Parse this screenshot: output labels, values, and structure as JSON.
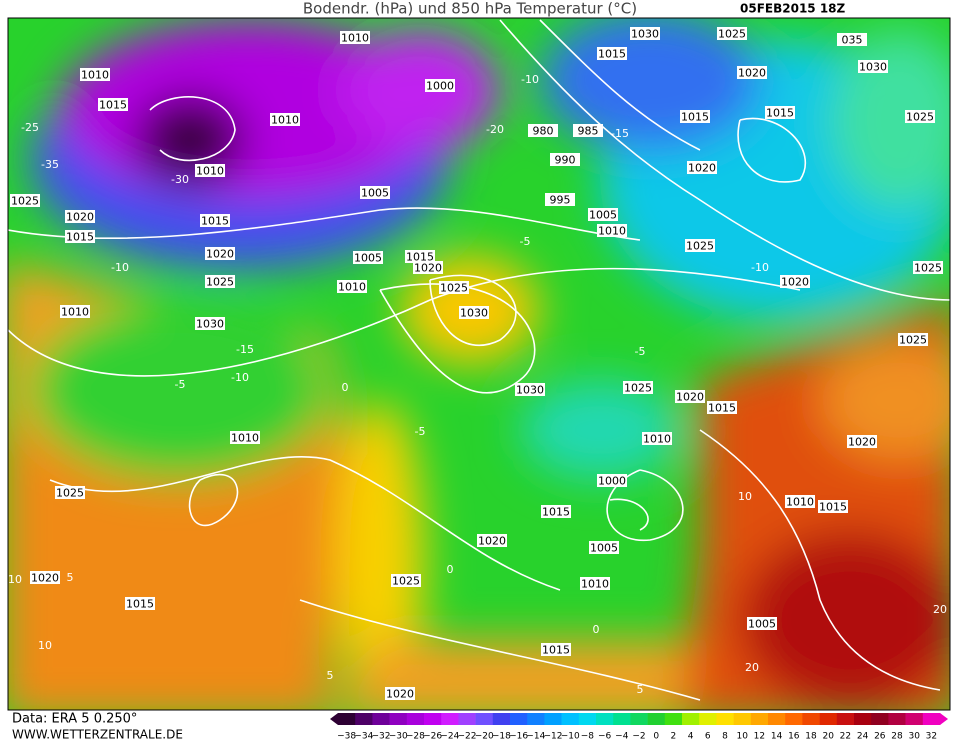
{
  "header": {
    "title": "Bodendr. (hPa) und 850 hPa Temperatur (°C)",
    "date": "05FEB2015 18Z"
  },
  "footer": {
    "source": "Data: ERA 5 0.250°",
    "website": "WWW.WETTERZENTRALE.DE"
  },
  "colorbar": {
    "labels": [
      "−38",
      "−34",
      "−32",
      "−30",
      "−28",
      "−26",
      "−24",
      "−22",
      "−20",
      "−18",
      "−16",
      "−14",
      "−12",
      "−10",
      "−8",
      "−6",
      "−4",
      "−2",
      "0",
      "2",
      "4",
      "6",
      "8",
      "10",
      "12",
      "14",
      "16",
      "18",
      "20",
      "22",
      "24",
      "26",
      "28",
      "30",
      "32"
    ],
    "colors": [
      "#2d0033",
      "#4d0066",
      "#6e0099",
      "#8f00c0",
      "#a800dc",
      "#c000f0",
      "#d01cff",
      "#a040ff",
      "#7050ff",
      "#4040f0",
      "#2060ff",
      "#1080ff",
      "#00a0ff",
      "#00c0ff",
      "#00d8f0",
      "#00e0c0",
      "#00e090",
      "#10d860",
      "#20d030",
      "#40e010",
      "#a0f000",
      "#e0f000",
      "#ffe000",
      "#ffc800",
      "#ffa800",
      "#ff8800",
      "#ff6800",
      "#f04800",
      "#e02800",
      "#c81010",
      "#a80010",
      "#900020",
      "#b00040",
      "#d00070",
      "#f000c0"
    ]
  },
  "map": {
    "isobar_labels": [
      "1010",
      "1000",
      "1030",
      "1025",
      "035",
      "1030",
      "1015",
      "1020",
      "1015",
      "1025",
      "1010",
      "1015",
      "1010",
      "1010",
      "980",
      "985",
      "990",
      "1015",
      "1020",
      "995",
      "1005",
      "1005",
      "1010",
      "1025",
      "1020",
      "1015",
      "1015",
      "1020",
      "1025",
      "1005",
      "1015",
      "1020",
      "1025",
      "1025",
      "1010",
      "1025",
      "1030",
      "1020",
      "1010",
      "1030",
      "1025",
      "1030",
      "1025",
      "1020",
      "1015",
      "1010",
      "1010",
      "1020",
      "1025",
      "1000",
      "1010",
      "1015",
      "1015",
      "1020",
      "1005",
      "1020",
      "1025",
      "1010",
      "1015",
      "1005",
      "1015",
      "1020"
    ],
    "isotherm_labels": [
      "-25",
      "-30",
      "-35",
      "-10",
      "-15",
      "-10",
      "-5",
      "0",
      "-5",
      "-10",
      "-20",
      "-15",
      "-5",
      "-10",
      "-5",
      "0",
      "5",
      "10",
      "10",
      "5",
      "0",
      "5",
      "10",
      "20",
      "20"
    ]
  }
}
